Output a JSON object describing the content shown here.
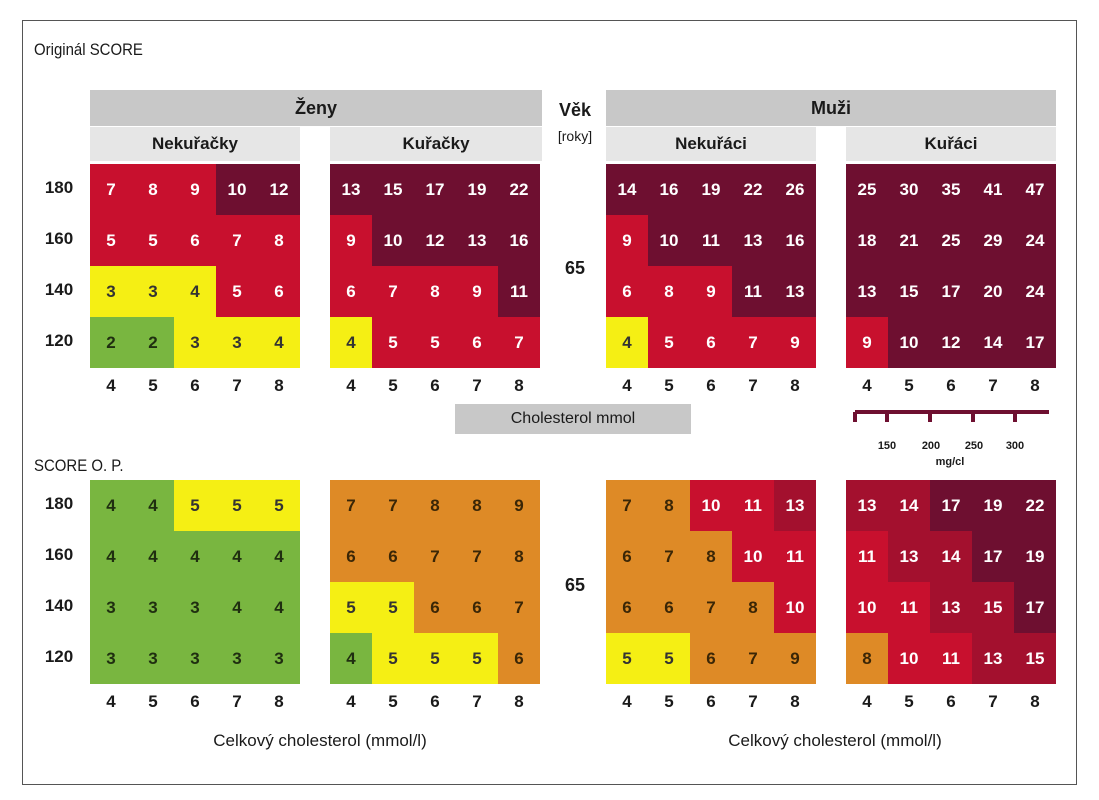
{
  "labels": {
    "title_original": "Originál SCORE",
    "title_op": "SCORE O. P.",
    "women": "Ženy",
    "men": "Muži",
    "age_header": "Věk",
    "age_unit": "[roky]",
    "age_value": "65",
    "w_nonsmokers": "Nekuřačky",
    "w_smokers": "Kuřačky",
    "m_nonsmokers": "Nekuřáci",
    "m_smokers": "Kuřáci",
    "cholesterol_mmol": "Cholesterol mmol",
    "total_cholesterol_left": "Celkový cholesterol (mmol/l)",
    "total_cholesterol_right": "Celkový cholesterol (mmol/l)",
    "mgdl_ticks": [
      "150",
      "200",
      "250",
      "300"
    ],
    "mgdl_unit": "mg/cl"
  },
  "colors": {
    "green": "#79b640",
    "yellow": "#f5ef14",
    "orange": "#de8a26",
    "red": "#c8102e",
    "darkred": "#a3102e",
    "maroon": "#6e0f30"
  },
  "chart_data": {
    "type": "heatmap",
    "x_label": "Celkový cholesterol (mmol/l)",
    "x": [
      4,
      5,
      6,
      7,
      8
    ],
    "y_label": "",
    "y": [
      180,
      160,
      140,
      120
    ],
    "age": 65,
    "panels": [
      {
        "section": "Originál SCORE",
        "group": "Ženy",
        "name": "Nekuřačky",
        "values": [
          [
            7,
            8,
            9,
            10,
            12
          ],
          [
            5,
            5,
            6,
            7,
            8
          ],
          [
            3,
            3,
            4,
            5,
            6
          ],
          [
            2,
            2,
            3,
            3,
            4
          ]
        ],
        "colors": [
          [
            "red",
            "red",
            "red",
            "maroon",
            "maroon"
          ],
          [
            "red",
            "red",
            "red",
            "red",
            "red"
          ],
          [
            "yellow",
            "yellow",
            "yellow",
            "red",
            "red"
          ],
          [
            "green",
            "green",
            "yellow",
            "yellow",
            "yellow"
          ]
        ]
      },
      {
        "section": "Originál SCORE",
        "group": "Ženy",
        "name": "Kuřačky",
        "values": [
          [
            13,
            15,
            17,
            19,
            22
          ],
          [
            9,
            10,
            12,
            13,
            16
          ],
          [
            6,
            7,
            8,
            9,
            11
          ],
          [
            4,
            5,
            5,
            6,
            7
          ]
        ],
        "colors": [
          [
            "maroon",
            "maroon",
            "maroon",
            "maroon",
            "maroon"
          ],
          [
            "red",
            "maroon",
            "maroon",
            "maroon",
            "maroon"
          ],
          [
            "red",
            "red",
            "red",
            "red",
            "maroon"
          ],
          [
            "yellow",
            "red",
            "red",
            "red",
            "red"
          ]
        ]
      },
      {
        "section": "Originál SCORE",
        "group": "Muži",
        "name": "Nekuřáci",
        "values": [
          [
            14,
            16,
            19,
            22,
            26
          ],
          [
            9,
            10,
            11,
            13,
            16
          ],
          [
            6,
            8,
            9,
            11,
            13
          ],
          [
            4,
            5,
            6,
            7,
            9
          ]
        ],
        "colors": [
          [
            "maroon",
            "maroon",
            "maroon",
            "maroon",
            "maroon"
          ],
          [
            "red",
            "maroon",
            "maroon",
            "maroon",
            "maroon"
          ],
          [
            "red",
            "red",
            "red",
            "maroon",
            "maroon"
          ],
          [
            "yellow",
            "red",
            "red",
            "red",
            "red"
          ]
        ]
      },
      {
        "section": "Originál SCORE",
        "group": "Muži",
        "name": "Kuřáci",
        "values": [
          [
            25,
            30,
            35,
            41,
            47
          ],
          [
            18,
            21,
            25,
            29,
            24
          ],
          [
            13,
            15,
            17,
            20,
            24
          ],
          [
            9,
            10,
            12,
            14,
            17
          ]
        ],
        "colors": [
          [
            "maroon",
            "maroon",
            "maroon",
            "maroon",
            "maroon"
          ],
          [
            "maroon",
            "maroon",
            "maroon",
            "maroon",
            "maroon"
          ],
          [
            "maroon",
            "maroon",
            "maroon",
            "maroon",
            "maroon"
          ],
          [
            "red",
            "maroon",
            "maroon",
            "maroon",
            "maroon"
          ]
        ]
      },
      {
        "section": "SCORE O. P.",
        "group": "Ženy",
        "name": "Nekuřačky",
        "values": [
          [
            4,
            4,
            5,
            5,
            5
          ],
          [
            4,
            4,
            4,
            4,
            4
          ],
          [
            3,
            3,
            3,
            4,
            4
          ],
          [
            3,
            3,
            3,
            3,
            3
          ]
        ],
        "colors": [
          [
            "green",
            "green",
            "yellow",
            "yellow",
            "yellow"
          ],
          [
            "green",
            "green",
            "green",
            "green",
            "green"
          ],
          [
            "green",
            "green",
            "green",
            "green",
            "green"
          ],
          [
            "green",
            "green",
            "green",
            "green",
            "green"
          ]
        ]
      },
      {
        "section": "SCORE O. P.",
        "group": "Ženy",
        "name": "Kuřačky",
        "values": [
          [
            7,
            7,
            8,
            8,
            9
          ],
          [
            6,
            6,
            7,
            7,
            8
          ],
          [
            5,
            5,
            6,
            6,
            7
          ],
          [
            4,
            5,
            5,
            5,
            6
          ]
        ],
        "colors": [
          [
            "orange",
            "orange",
            "orange",
            "orange",
            "orange"
          ],
          [
            "orange",
            "orange",
            "orange",
            "orange",
            "orange"
          ],
          [
            "yellow",
            "yellow",
            "orange",
            "orange",
            "orange"
          ],
          [
            "green",
            "yellow",
            "yellow",
            "yellow",
            "orange"
          ]
        ]
      },
      {
        "section": "SCORE O. P.",
        "group": "Muži",
        "name": "Nekuřáci",
        "values": [
          [
            7,
            8,
            10,
            11,
            13
          ],
          [
            6,
            7,
            8,
            10,
            11
          ],
          [
            6,
            6,
            7,
            8,
            10
          ],
          [
            5,
            5,
            6,
            7,
            9
          ]
        ],
        "colors": [
          [
            "orange",
            "orange",
            "red",
            "red",
            "darkred"
          ],
          [
            "orange",
            "orange",
            "orange",
            "red",
            "red"
          ],
          [
            "orange",
            "orange",
            "orange",
            "orange",
            "red"
          ],
          [
            "yellow",
            "yellow",
            "orange",
            "orange",
            "orange"
          ]
        ]
      },
      {
        "section": "SCORE O. P.",
        "group": "Muži",
        "name": "Kuřáci",
        "values": [
          [
            13,
            14,
            17,
            19,
            22
          ],
          [
            11,
            13,
            14,
            17,
            19
          ],
          [
            10,
            11,
            13,
            15,
            17
          ],
          [
            8,
            10,
            11,
            13,
            15
          ]
        ],
        "colors": [
          [
            "darkred",
            "darkred",
            "maroon",
            "maroon",
            "maroon"
          ],
          [
            "red",
            "darkred",
            "darkred",
            "maroon",
            "maroon"
          ],
          [
            "red",
            "red",
            "darkred",
            "darkred",
            "maroon"
          ],
          [
            "orange",
            "red",
            "red",
            "darkred",
            "darkred"
          ]
        ]
      }
    ]
  }
}
